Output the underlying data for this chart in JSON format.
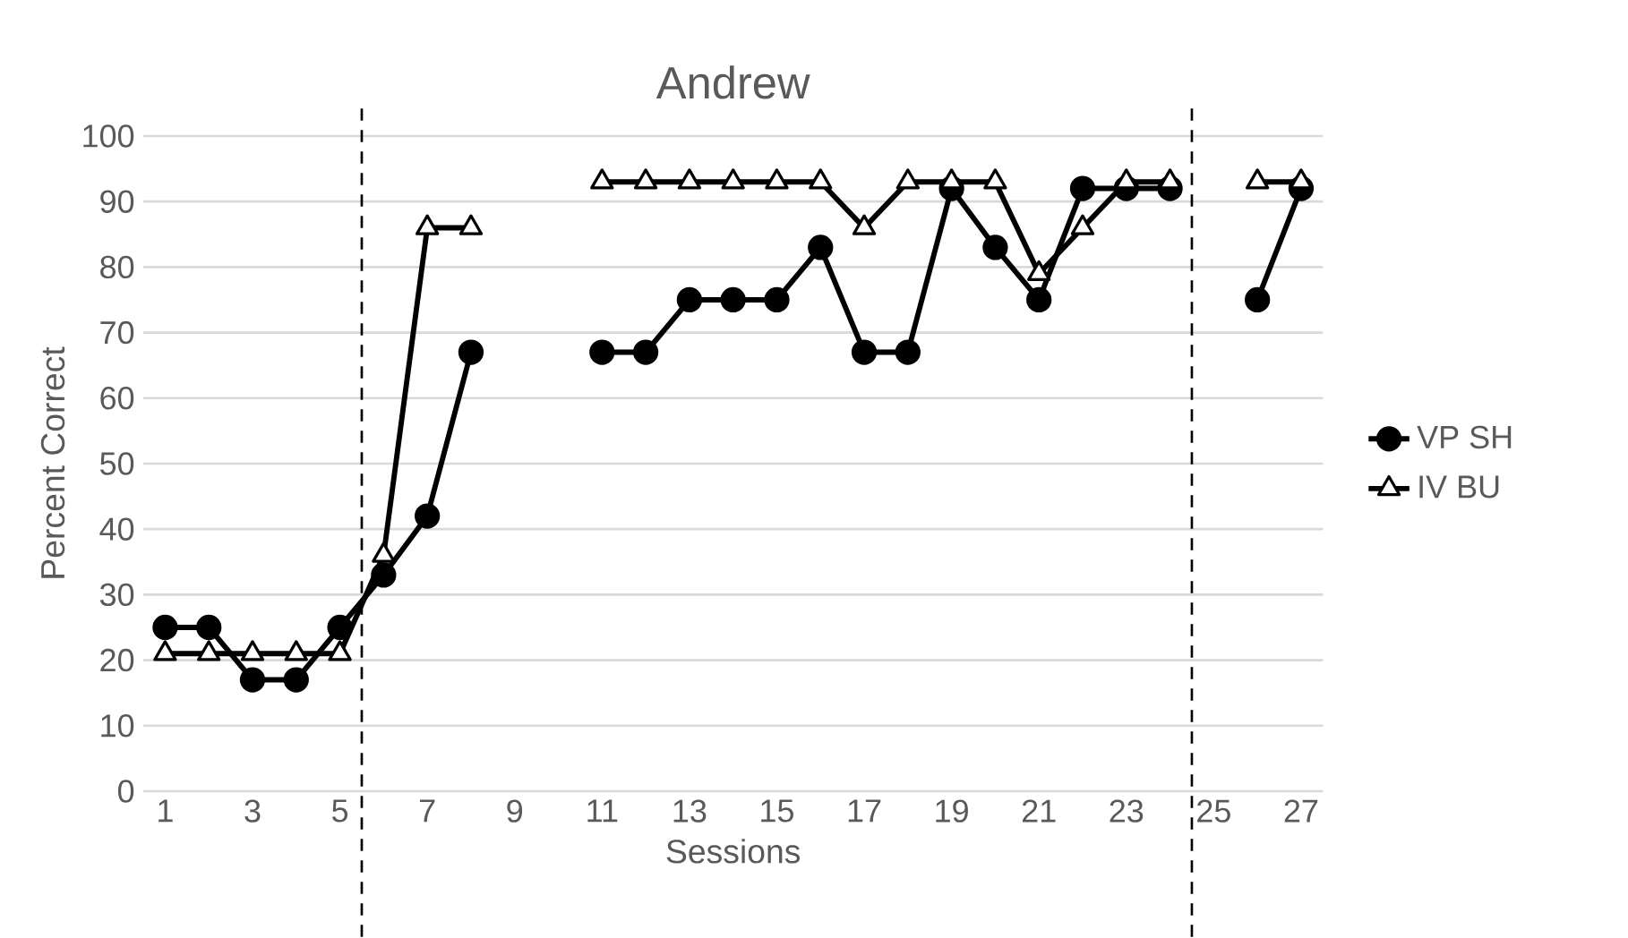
{
  "chart_data": {
    "type": "line",
    "title": "Andrew",
    "xlabel": "Sessions",
    "ylabel": "Percent Correct",
    "x": [
      1,
      2,
      3,
      4,
      5,
      6,
      7,
      8,
      9,
      10,
      11,
      12,
      13,
      14,
      15,
      16,
      17,
      18,
      19,
      20,
      21,
      22,
      23,
      24,
      25,
      26,
      27
    ],
    "series": [
      {
        "name": "VP SH",
        "color": "#000000",
        "marker": "circle",
        "values": [
          25,
          25,
          17,
          17,
          25,
          33,
          42,
          67,
          null,
          null,
          67,
          67,
          75,
          75,
          75,
          83,
          67,
          67,
          92,
          83,
          75,
          92,
          92,
          92,
          null,
          75,
          92
        ]
      },
      {
        "name": "IV BU",
        "color": "#000000",
        "marker": "triangle",
        "values": [
          21,
          21,
          21,
          21,
          21,
          36,
          86,
          86,
          null,
          null,
          93,
          93,
          93,
          93,
          93,
          93,
          86,
          93,
          93,
          93,
          79,
          86,
          93,
          93,
          null,
          93,
          93
        ]
      }
    ],
    "xlim": [
      0.5,
      27.5
    ],
    "xticks": [
      1,
      3,
      5,
      7,
      9,
      11,
      13,
      15,
      17,
      19,
      21,
      23,
      25,
      27
    ],
    "ylim": [
      0,
      100
    ],
    "yticks": [
      0,
      10,
      20,
      30,
      40,
      50,
      60,
      70,
      80,
      90,
      100
    ],
    "ref_lines": [
      {
        "axis": "x",
        "value": 5.5,
        "color": "#000000",
        "line_style": "dashed"
      },
      {
        "axis": "x",
        "value": 24.5,
        "color": "#000000",
        "line_style": "dashed"
      }
    ],
    "grid": "y",
    "legend": "right",
    "line_style": "solid"
  }
}
